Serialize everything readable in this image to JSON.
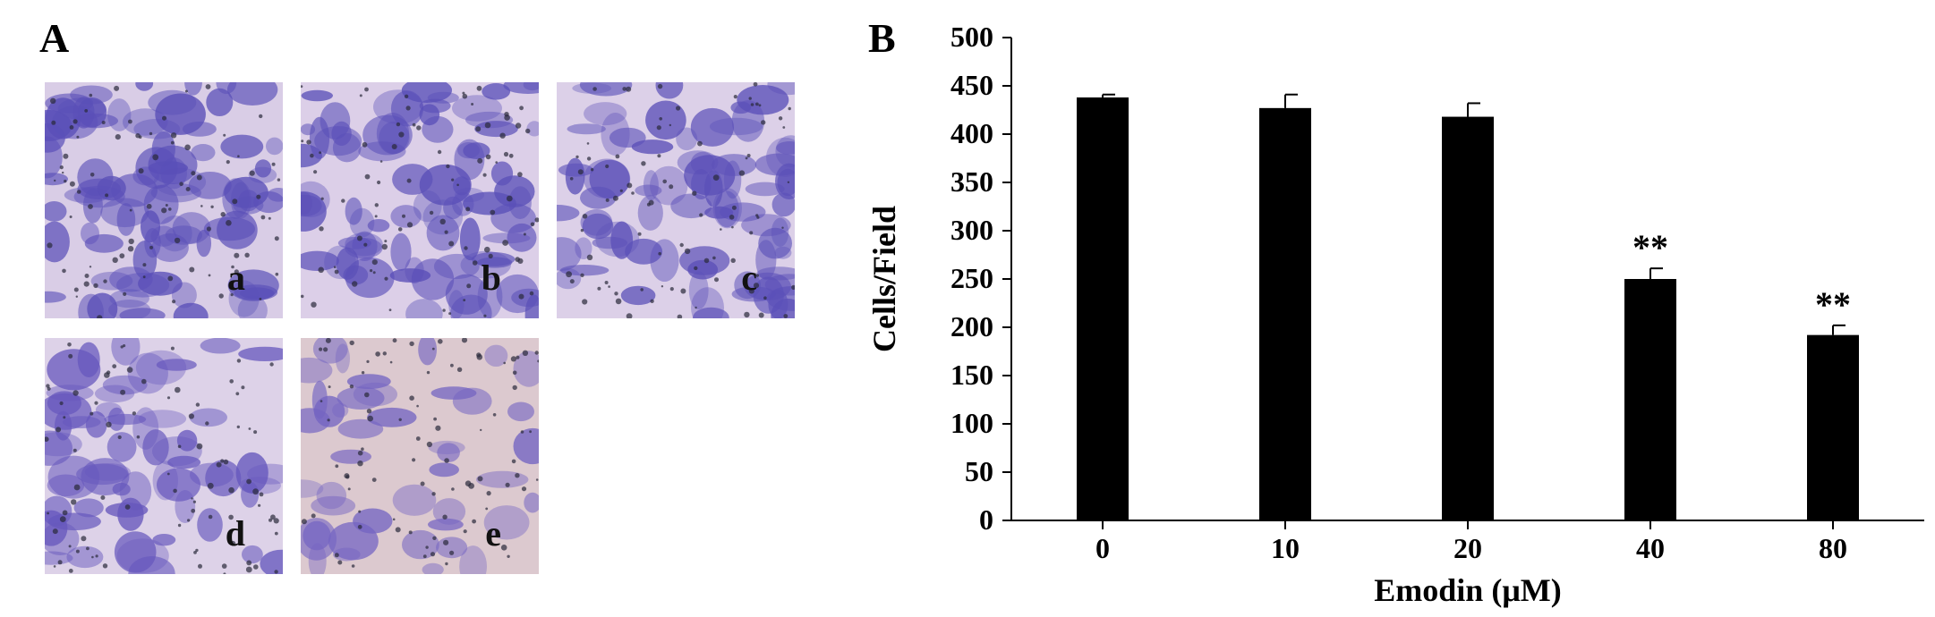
{
  "panels": {
    "left_letter": "A",
    "right_letter": "B"
  },
  "micrographs": [
    {
      "label": "a",
      "stain_color": "#5a4fb8",
      "background": "#d9cde6",
      "density": 0.78
    },
    {
      "label": "b",
      "stain_color": "#5a4fb8",
      "background": "#dccfe8",
      "density": 0.72
    },
    {
      "label": "c",
      "stain_color": "#5b50b8",
      "background": "#dcd0e8",
      "density": 0.7
    },
    {
      "label": "d",
      "stain_color": "#6657bd",
      "background": "#ddd2e8",
      "density": 0.55
    },
    {
      "label": "e",
      "stain_color": "#7464c2",
      "background": "#dcc9cf",
      "density": 0.38
    }
  ],
  "chart_data": {
    "type": "bar",
    "categories": [
      "0",
      "10",
      "20",
      "40",
      "80"
    ],
    "values": [
      438,
      427,
      418,
      250,
      192
    ],
    "errors": [
      3,
      14,
      14,
      11,
      10
    ],
    "annotations": [
      "",
      "",
      "",
      "**",
      "**"
    ],
    "xlabel": "Emodin (μM)",
    "ylabel": "Cells/Field",
    "ylim": [
      0,
      500
    ],
    "yticks": [
      "0",
      "50",
      "100",
      "150",
      "200",
      "250",
      "300",
      "350",
      "400",
      "450",
      "500"
    ],
    "bar_color": "#000000",
    "grid": false
  }
}
